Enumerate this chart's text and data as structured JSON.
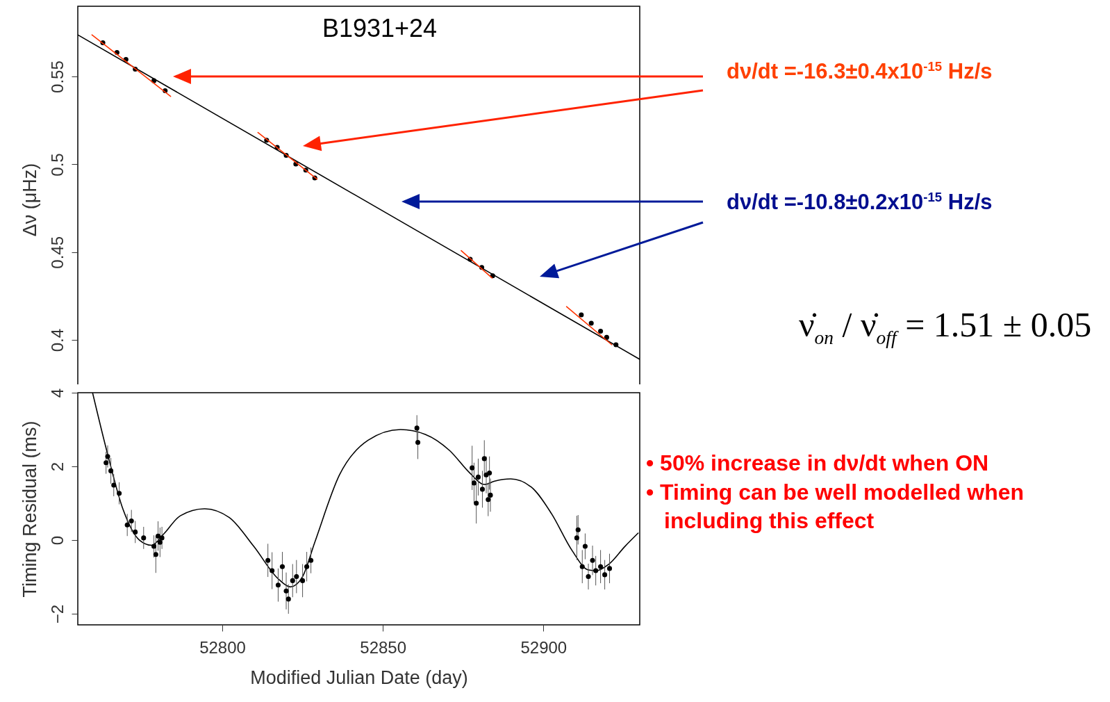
{
  "chart_data": [
    {
      "type": "line",
      "title": "B1931+24",
      "ylabel": "Δν (μHz)",
      "xlim": [
        52755,
        52930
      ],
      "ylim": [
        0.37,
        0.59
      ],
      "xticks": [
        52800,
        52850,
        52900
      ],
      "yticks": [
        0.4,
        0.45,
        0.5,
        0.55
      ],
      "tick_labels": "y",
      "series": [
        {
          "color": "#000000",
          "x": [
            52755,
            52930
          ],
          "values": [
            0.5737,
            0.389
          ]
        },
        {
          "type": "scatter",
          "marker": "circle",
          "color": "#000000",
          "x": [
            52762.8,
            52767.2,
            52770,
            52772.9,
            52778.7,
            52782.2,
            52813.8,
            52817.1,
            52819.9,
            52822.9,
            52826,
            52828.8,
            52877.2,
            52880.8,
            52884.2,
            52911.8,
            52914.9,
            52917.8,
            52919.7,
            52922.6
          ],
          "values": [
            0.5692,
            0.5637,
            0.5597,
            0.5542,
            0.5476,
            0.5419,
            0.5137,
            0.5097,
            0.5051,
            0.5002,
            0.4967,
            0.4923,
            0.446,
            0.4413,
            0.4366,
            0.4143,
            0.4096,
            0.405,
            0.4015,
            0.3973
          ]
        },
        {
          "color": "#ff3300",
          "x": [
            52759.4,
            52783.9
          ],
          "values": [
            0.5737,
            0.5387
          ]
        },
        {
          "color": "#ff3300",
          "x": [
            52811.1,
            52829.5
          ],
          "values": [
            0.5181,
            0.4916
          ]
        },
        {
          "color": "#ff3300",
          "x": [
            52874.4,
            52884
          ],
          "values": [
            0.4509,
            0.4353
          ]
        },
        {
          "color": "#ff3300",
          "x": [
            52907.2,
            52921.3
          ],
          "values": [
            0.419,
            0.3973
          ]
        }
      ],
      "annotations": [
        "dν/dt =-16.3±0.4x10$^{-15}$ Hz/s",
        "dν/dt =-10.8±0.2x10$^{-15}$ Hz/s",
        "ν̇$_{on}$ / ν̇$_{off}$ = 1.51 ± 0.05"
      ]
    },
    {
      "type": "line",
      "xlabel": "Modified Julian Date (day)",
      "ylabel": "Timing Residual (ms)",
      "xlim": [
        52755,
        52930
      ],
      "ylim": [
        -2.3,
        4
      ],
      "xticks": [
        52800,
        52850,
        52900
      ],
      "yticks": [
        -2,
        0,
        2,
        4
      ],
      "series": [
        {
          "color": "#000000",
          "x": [
            52759.6,
            52764,
            52769.1,
            52774.2,
            52778,
            52781.8,
            52786.9,
            52794.5,
            52802.2,
            52809.8,
            52817.4,
            52821.2,
            52825,
            52828.8,
            52836.5,
            52845.4,
            52855.5,
            52863.2,
            52870.8,
            52877.1,
            52881.6,
            52884.8,
            52889.8,
            52896.2,
            52902.5,
            52908.9,
            52914,
            52916.5,
            52920.3,
            52925.4,
            52929.5
          ],
          "values": [
            4,
            2.43,
            0.83,
            0,
            -0.14,
            0.17,
            0.66,
            0.85,
            0.61,
            -0.17,
            -1.05,
            -1.27,
            -0.99,
            -0.06,
            1.77,
            2.71,
            3,
            2.87,
            2.43,
            1.82,
            1.51,
            1.6,
            1.66,
            1.44,
            0.72,
            -0.28,
            -0.81,
            -0.83,
            -0.66,
            -0.17,
            0.19
          ]
        },
        {
          "type": "scatter",
          "marker": "circle",
          "color": "#000000",
          "x": [
            52763.8,
            52764.3,
            52765.3,
            52766.2,
            52767.9,
            52770.4,
            52771.7,
            52772.9,
            52775.5,
            52778.7,
            52779.3,
            52780,
            52780.6,
            52781.2,
            52814.2,
            52815.5,
            52817.4,
            52818.7,
            52819.9,
            52820.6,
            52821.9,
            52823.1,
            52825,
            52826.3,
            52827.6,
            52860.6,
            52860.9,
            52877.8,
            52878.4,
            52879.1,
            52879.7,
            52881,
            52881.6,
            52882.2,
            52882.8,
            52883.2,
            52883.5,
            52910.4,
            52910.8,
            52912.1,
            52913,
            52914,
            52915.3,
            52916.3,
            52917.8,
            52919.1,
            52920.6
          ],
          "values": [
            2.1,
            2.27,
            1.88,
            1.49,
            1.27,
            0.41,
            0.52,
            0.22,
            0.06,
            -0.17,
            -0.39,
            0.11,
            -0.06,
            0.06,
            -0.55,
            -0.83,
            -1.22,
            -0.72,
            -1.38,
            -1.6,
            -1.1,
            -0.99,
            -1.1,
            -0.72,
            -0.55,
            3.04,
            2.65,
            1.96,
            1.55,
            1,
            1.71,
            1.38,
            2.21,
            1.77,
            1.1,
            1.82,
            1.22,
            0.06,
            0.28,
            -0.72,
            -0.17,
            -0.99,
            -0.55,
            -0.83,
            -0.72,
            -0.94,
            -0.77
          ],
          "errors": [
            0.3,
            0.3,
            0.35,
            0.3,
            0.3,
            0.3,
            0.3,
            0.3,
            0.3,
            0.3,
            0.5,
            0.4,
            0.4,
            0.3,
            0.45,
            0.5,
            0.45,
            0.4,
            0.5,
            0.4,
            0.45,
            0.45,
            0.45,
            0.4,
            0.35,
            0.35,
            0.45,
            0.6,
            0.55,
            0.55,
            0.5,
            0.5,
            0.5,
            0.5,
            0.45,
            0.45,
            0.45,
            0.6,
            0.4,
            0.45,
            0.35,
            0.35,
            0.4,
            0.4,
            0.45,
            0.4,
            0.4
          ]
        }
      ],
      "annotations": [
        "• 50% increase in dν/dt when ON",
        "• Timing can be well modelled when including this effect"
      ]
    }
  ]
}
